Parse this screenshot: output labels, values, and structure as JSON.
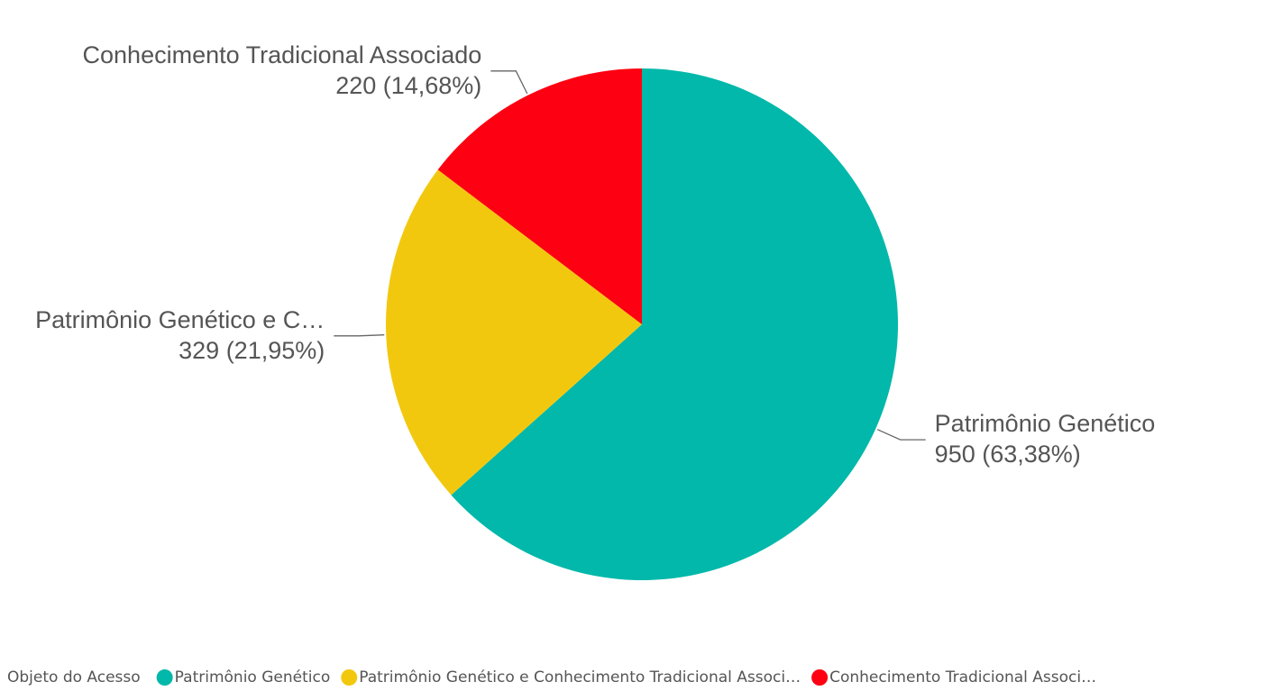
{
  "chart_data": {
    "type": "pie",
    "categories": [
      "Patrimônio Genético",
      "Patrimônio Genético e C…",
      "Conhecimento Tradicional Associado"
    ],
    "values": [
      950,
      329,
      220
    ],
    "value_labels": [
      "950 (63,38%)",
      "329 (21,95%)",
      "220 (14,68%)"
    ],
    "colors": [
      "#01b8aa",
      "#f2c80f",
      "#fd0011"
    ],
    "legend": {
      "title": "Objeto do Acesso",
      "entries": [
        "Patrimônio Genético",
        "Patrimônio Genético e Conhecimento Tradicional Associ…",
        "Conhecimento Tradicional Associ…"
      ]
    }
  }
}
